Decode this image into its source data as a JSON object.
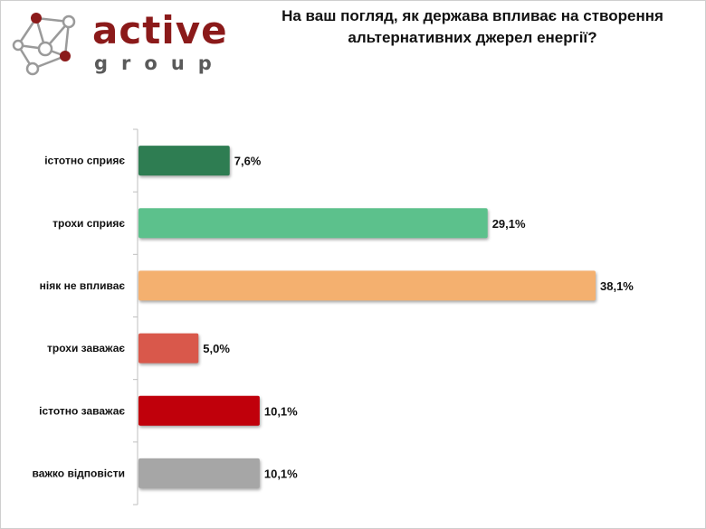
{
  "brand": {
    "name": "active",
    "sub": "group",
    "color": "#8b1a1a",
    "node_color_dark": "#8b1a1a",
    "node_color_light": "#bdbdbd"
  },
  "chart_data": {
    "type": "bar",
    "orientation": "horizontal",
    "title": "На ваш погляд, як держава впливає на створення альтернативних джерел енергії?",
    "categories": [
      "істотно сприяє",
      "трохи сприяє",
      "ніяк не впливає",
      "трохи заважає",
      "істотно заважає",
      "важко відповісти"
    ],
    "values": [
      7.6,
      29.1,
      38.1,
      5.0,
      10.1,
      10.1
    ],
    "value_labels": [
      "7,6%",
      "29,1%",
      "38,1%",
      "5,0%",
      "10,1%",
      "10,1%"
    ],
    "colors": [
      "#2e7d52",
      "#5cc18c",
      "#f4b06f",
      "#d9584b",
      "#c0000b",
      "#a6a6a6"
    ],
    "xlim": [
      0,
      38.1
    ],
    "grid": false,
    "legend": "none"
  }
}
